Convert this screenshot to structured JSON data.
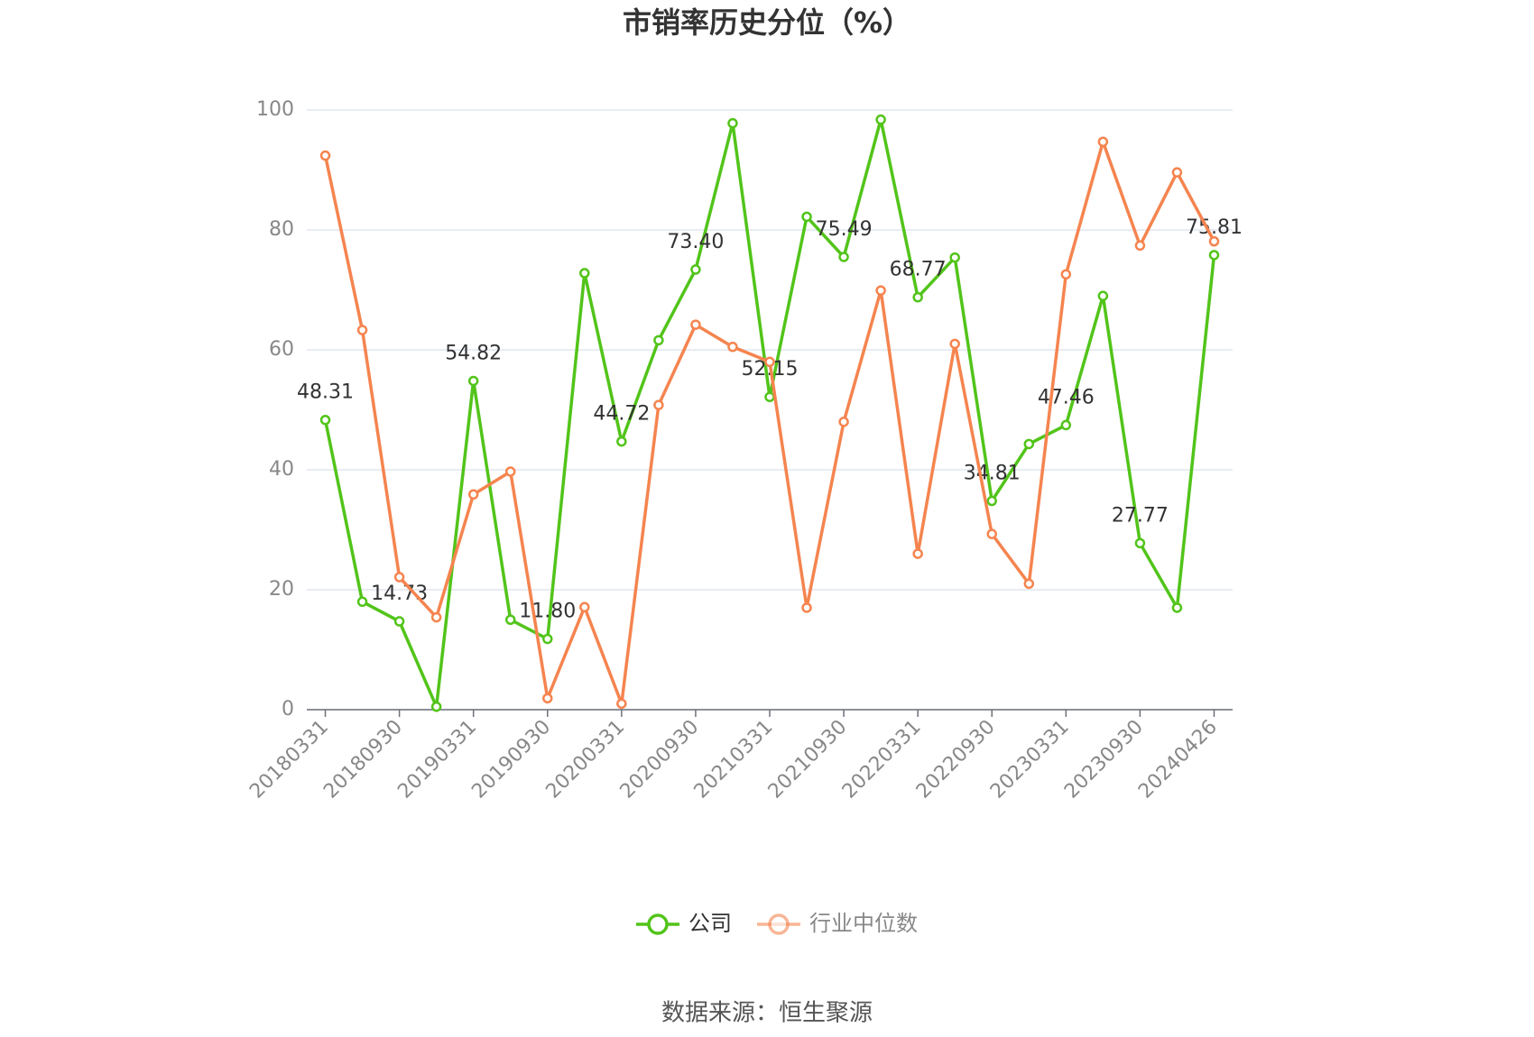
{
  "chart_data": {
    "type": "line",
    "title": "市销率历史分位（%）",
    "source": "数据来源：恒生聚源",
    "categories": [
      "20180331",
      null,
      "20180930",
      null,
      "20190331",
      null,
      "20190930",
      null,
      "20200331",
      null,
      "20200930",
      null,
      "20210331",
      null,
      "20210930",
      null,
      "20220331",
      null,
      "20220930",
      null,
      "20230331",
      null,
      "20230930",
      null,
      "20240426"
    ],
    "series": [
      {
        "name": "公司",
        "color": "#52c41a",
        "values": [
          48.31,
          18,
          14.73,
          0.5,
          54.82,
          15,
          11.8,
          72.8,
          44.72,
          61.6,
          73.4,
          97.8,
          52.15,
          82.2,
          75.49,
          98.4,
          68.77,
          75.4,
          34.81,
          44.3,
          47.46,
          69.0,
          27.77,
          17.0,
          75.81
        ],
        "value_labels": [
          "48.31",
          null,
          "14.73",
          null,
          "54.82",
          null,
          "11.80",
          null,
          "44.72",
          null,
          "73.40",
          null,
          "52.15",
          null,
          "75.49",
          null,
          "68.77",
          null,
          "34.81",
          null,
          "47.46",
          null,
          "27.77",
          null,
          "75.81"
        ]
      },
      {
        "name": "行业中位数",
        "color": "#f5844f",
        "values": [
          92.4,
          63.3,
          22.1,
          15.4,
          35.9,
          39.7,
          1.9,
          17.1,
          1.0,
          50.8,
          64.2,
          60.5,
          58.0,
          17.0,
          48.0,
          69.9,
          26.0,
          61.0,
          29.3,
          21.0,
          72.6,
          94.7,
          77.4,
          89.6,
          78.1
        ]
      }
    ],
    "ylim": [
      0,
      100
    ],
    "yticks": [
      0,
      20,
      40,
      60,
      80,
      100
    ],
    "grid": true
  }
}
